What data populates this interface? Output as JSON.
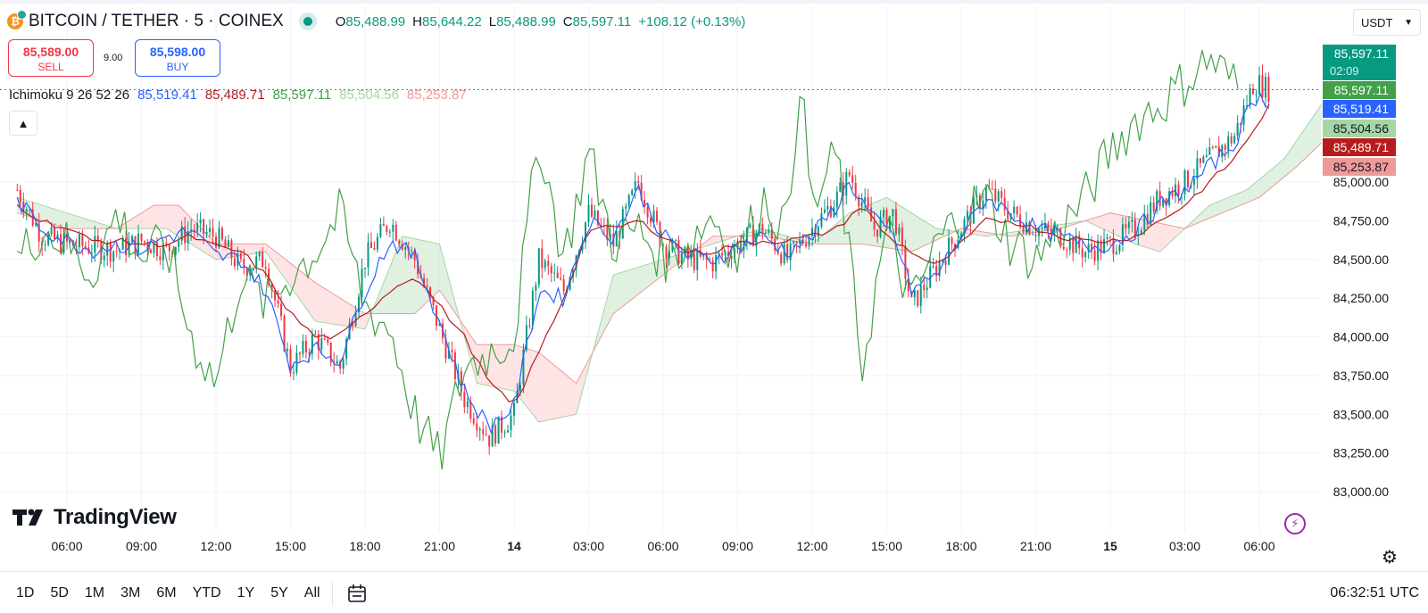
{
  "header": {
    "coin_glyph": "₿",
    "symbol": "BITCOIN / TETHER · 5 · COINEX",
    "ohlc": [
      {
        "label": "O",
        "value": "85,488.99"
      },
      {
        "label": "H",
        "value": "85,644.22"
      },
      {
        "label": "L",
        "value": "85,488.99"
      },
      {
        "label": "C",
        "value": "85,597.11"
      }
    ],
    "change": "+108.12 (+0.13%)",
    "currency": "USDT"
  },
  "trade": {
    "sell_price": "85,589.00",
    "sell_label": "SELL",
    "spread": "9.00",
    "buy_price": "85,598.00",
    "buy_label": "BUY"
  },
  "indicator": {
    "name": "Ichimoku 9 26 52 26",
    "values": [
      {
        "name": "conversion",
        "value": "85,519.41",
        "color": "#2962ff"
      },
      {
        "name": "base",
        "value": "85,489.71",
        "color": "#b71c1c"
      },
      {
        "name": "lagging",
        "value": "85,597.11",
        "color": "#43a047"
      },
      {
        "name": "lead-a",
        "value": "85,504.56",
        "color": "#a5d6a7"
      },
      {
        "name": "lead-b",
        "value": "85,253.87",
        "color": "#ef9a9a"
      }
    ]
  },
  "chart_data": {
    "type": "candlestick",
    "y_ticks": [
      83000,
      83250,
      83500,
      83750,
      84000,
      84250,
      84500,
      84750,
      85000
    ],
    "y_tick_labels": [
      "83,000.00",
      "83,250.00",
      "83,500.00",
      "83,750.00",
      "84,000.00",
      "84,250.00",
      "84,500.00",
      "84,750.00",
      "85,000.00"
    ],
    "ylim": [
      82950,
      85850
    ],
    "x_ticks": [
      "06:00",
      "09:00",
      "12:00",
      "15:00",
      "18:00",
      "21:00",
      "14",
      "03:00",
      "06:00",
      "09:00",
      "12:00",
      "15:00",
      "18:00",
      "21:00",
      "15",
      "03:00",
      "06:00"
    ],
    "x_tick_bold": [
      false,
      false,
      false,
      false,
      false,
      false,
      true,
      false,
      false,
      false,
      false,
      false,
      false,
      false,
      true,
      false,
      false
    ],
    "x_tick_hours": [
      6,
      9,
      12,
      15,
      18,
      21,
      24,
      27,
      30,
      33,
      36,
      39,
      42,
      45,
      48,
      51,
      54
    ],
    "xlim_hours": [
      3.9,
      56.5
    ],
    "last_hour": 54.4,
    "current_price_line": 85597.11,
    "series": {
      "close_path": [
        [
          4.0,
          84950
        ],
        [
          5.0,
          84650
        ],
        [
          6.0,
          84600
        ],
        [
          7.0,
          84580
        ],
        [
          8.0,
          84560
        ],
        [
          9.0,
          84620
        ],
        [
          10.0,
          84560
        ],
        [
          11.0,
          84700
        ],
        [
          12.0,
          84650
        ],
        [
          13.0,
          84450
        ],
        [
          14.0,
          84500
        ],
        [
          15.0,
          83800
        ],
        [
          16.0,
          84000
        ],
        [
          17.0,
          83800
        ],
        [
          18.0,
          84500
        ],
        [
          19.0,
          84750
        ],
        [
          20.0,
          84500
        ],
        [
          21.0,
          84050
        ],
        [
          22.0,
          83600
        ],
        [
          23.0,
          83350
        ],
        [
          24.0,
          83500
        ],
        [
          25.0,
          84500
        ],
        [
          26.0,
          84300
        ],
        [
          27.0,
          84800
        ],
        [
          28.0,
          84600
        ],
        [
          29.0,
          85000
        ],
        [
          30.0,
          84600
        ],
        [
          31.0,
          84500
        ],
        [
          32.0,
          84480
        ],
        [
          33.0,
          84600
        ],
        [
          34.0,
          84700
        ],
        [
          35.0,
          84500
        ],
        [
          36.0,
          84700
        ],
        [
          37.0,
          84900
        ],
        [
          37.5,
          85050
        ],
        [
          38.5,
          84700
        ],
        [
          39.3,
          84800
        ],
        [
          40.0,
          84200
        ],
        [
          41.0,
          84450
        ],
        [
          42.0,
          84700
        ],
        [
          43.0,
          84950
        ],
        [
          44.0,
          84800
        ],
        [
          45.0,
          84700
        ],
        [
          46.0,
          84650
        ],
        [
          47.0,
          84550
        ],
        [
          48.0,
          84600
        ],
        [
          49.0,
          84700
        ],
        [
          50.0,
          84900
        ],
        [
          51.0,
          85000
        ],
        [
          52.0,
          85150
        ],
        [
          53.0,
          85300
        ],
        [
          53.8,
          85650
        ],
        [
          54.4,
          85597
        ]
      ],
      "conversion_path": [
        [
          4.0,
          84880
        ],
        [
          5.0,
          84700
        ],
        [
          6.0,
          84620
        ],
        [
          7.0,
          84560
        ],
        [
          8.0,
          84600
        ],
        [
          9.0,
          84560
        ],
        [
          10.0,
          84650
        ],
        [
          11.0,
          84680
        ],
        [
          12.0,
          84520
        ],
        [
          13.0,
          84500
        ],
        [
          14.0,
          84300
        ],
        [
          15.0,
          83820
        ],
        [
          16.0,
          83920
        ],
        [
          17.0,
          83850
        ],
        [
          18.0,
          84300
        ],
        [
          19.0,
          84620
        ],
        [
          20.0,
          84520
        ],
        [
          21.0,
          84100
        ],
        [
          22.0,
          83650
        ],
        [
          23.0,
          83420
        ],
        [
          24.0,
          83550
        ],
        [
          25.0,
          84300
        ],
        [
          26.0,
          84250
        ],
        [
          27.0,
          84750
        ],
        [
          28.0,
          84650
        ],
        [
          29.0,
          84950
        ],
        [
          30.0,
          84650
        ],
        [
          31.0,
          84520
        ],
        [
          32.0,
          84500
        ],
        [
          33.0,
          84580
        ],
        [
          34.0,
          84650
        ],
        [
          35.0,
          84550
        ],
        [
          36.0,
          84650
        ],
        [
          37.0,
          84850
        ],
        [
          37.5,
          85000
        ],
        [
          38.5,
          84750
        ],
        [
          39.3,
          84650
        ],
        [
          40.0,
          84300
        ],
        [
          41.0,
          84400
        ],
        [
          42.0,
          84650
        ],
        [
          43.0,
          84900
        ],
        [
          44.0,
          84800
        ],
        [
          45.0,
          84700
        ],
        [
          46.0,
          84650
        ],
        [
          47.0,
          84580
        ],
        [
          48.0,
          84600
        ],
        [
          49.0,
          84680
        ],
        [
          50.0,
          84850
        ],
        [
          51.0,
          84950
        ],
        [
          52.0,
          85100
        ],
        [
          53.0,
          85250
        ],
        [
          53.8,
          85550
        ],
        [
          54.4,
          85519
        ]
      ],
      "base_path": [
        [
          4.0,
          84850
        ],
        [
          5.0,
          84750
        ],
        [
          6.0,
          84700
        ],
        [
          7.0,
          84620
        ],
        [
          8.0,
          84620
        ],
        [
          9.0,
          84600
        ],
        [
          10.0,
          84600
        ],
        [
          11.0,
          84650
        ],
        [
          12.0,
          84580
        ],
        [
          13.0,
          84550
        ],
        [
          14.0,
          84400
        ],
        [
          15.0,
          84150
        ],
        [
          16.0,
          84000
        ],
        [
          17.0,
          84000
        ],
        [
          18.0,
          84150
        ],
        [
          19.0,
          84300
        ],
        [
          20.0,
          84400
        ],
        [
          21.0,
          84200
        ],
        [
          22.0,
          84000
        ],
        [
          23.0,
          83700
        ],
        [
          24.0,
          83550
        ],
        [
          25.0,
          83900
        ],
        [
          26.0,
          84250
        ],
        [
          27.0,
          84700
        ],
        [
          28.0,
          84700
        ],
        [
          29.0,
          84750
        ],
        [
          30.0,
          84650
        ],
        [
          31.0,
          84550
        ],
        [
          32.0,
          84550
        ],
        [
          33.0,
          84600
        ],
        [
          34.0,
          84620
        ],
        [
          35.0,
          84620
        ],
        [
          36.0,
          84650
        ],
        [
          37.0,
          84700
        ],
        [
          38.0,
          84850
        ],
        [
          39.0,
          84650
        ],
        [
          40.0,
          84550
        ],
        [
          41.0,
          84450
        ],
        [
          42.0,
          84600
        ],
        [
          43.0,
          84750
        ],
        [
          44.0,
          84750
        ],
        [
          45.0,
          84700
        ],
        [
          46.0,
          84650
        ],
        [
          47.0,
          84620
        ],
        [
          48.0,
          84620
        ],
        [
          49.0,
          84650
        ],
        [
          50.0,
          84750
        ],
        [
          51.0,
          84850
        ],
        [
          52.0,
          85000
        ],
        [
          53.0,
          85150
        ],
        [
          54.4,
          85489
        ]
      ],
      "lagging_path": [
        [
          4.0,
          84500
        ],
        [
          5.0,
          84700
        ],
        [
          6.0,
          84600
        ],
        [
          7.0,
          84400
        ],
        [
          8.0,
          84800
        ],
        [
          9.0,
          84500
        ],
        [
          10.0,
          84600
        ],
        [
          11.0,
          84000
        ],
        [
          12.0,
          83700
        ],
        [
          13.0,
          84400
        ],
        [
          14.0,
          84200
        ],
        [
          15.0,
          84400
        ],
        [
          16.0,
          84550
        ],
        [
          17.0,
          84800
        ],
        [
          18.0,
          84200
        ],
        [
          19.0,
          84050
        ],
        [
          20.0,
          83500
        ],
        [
          21.0,
          83200
        ],
        [
          22.0,
          83800
        ],
        [
          23.0,
          83900
        ],
        [
          24.0,
          84000
        ],
        [
          25.0,
          85300
        ],
        [
          26.0,
          84500
        ],
        [
          27.0,
          85200
        ],
        [
          28.0,
          84600
        ],
        [
          29.0,
          84700
        ],
        [
          30.0,
          84500
        ],
        [
          31.0,
          84600
        ],
        [
          32.0,
          84800
        ],
        [
          33.0,
          84500
        ],
        [
          34.0,
          84900
        ],
        [
          35.0,
          84700
        ],
        [
          35.5,
          85700
        ],
        [
          36.0,
          84800
        ],
        [
          37.0,
          85200
        ],
        [
          38.0,
          83800
        ],
        [
          39.0,
          84700
        ],
        [
          40.0,
          84200
        ],
        [
          41.0,
          84600
        ],
        [
          42.0,
          84800
        ],
        [
          43.0,
          84900
        ],
        [
          44.0,
          84600
        ],
        [
          45.0,
          84500
        ],
        [
          46.0,
          84700
        ],
        [
          47.0,
          84900
        ],
        [
          48.0,
          85200
        ],
        [
          49.0,
          85400
        ],
        [
          50.0,
          85500
        ],
        [
          51.0,
          85650
        ],
        [
          52.0,
          85800
        ],
        [
          53.2,
          85597
        ]
      ],
      "cloud_a_path": [
        [
          4.0,
          84900
        ],
        [
          6.0,
          84800
        ],
        [
          8.0,
          84700
        ],
        [
          10.0,
          84700
        ],
        [
          12.0,
          84500
        ],
        [
          14.0,
          84550
        ],
        [
          16.0,
          84100
        ],
        [
          18.0,
          84050
        ],
        [
          19.5,
          84650
        ],
        [
          21.0,
          84600
        ],
        [
          22.5,
          83700
        ],
        [
          24.0,
          83650
        ],
        [
          25.0,
          83450
        ],
        [
          26.5,
          83500
        ],
        [
          28.0,
          84400
        ],
        [
          30.0,
          84500
        ],
        [
          32.0,
          84600
        ],
        [
          34.0,
          84700
        ],
        [
          36.0,
          84600
        ],
        [
          37.5,
          84800
        ],
        [
          39.0,
          84900
        ],
        [
          41.0,
          84700
        ],
        [
          43.0,
          84650
        ],
        [
          45.0,
          84700
        ],
        [
          47.0,
          84750
        ],
        [
          49.0,
          84600
        ],
        [
          50.0,
          84550
        ],
        [
          51.0,
          84700
        ],
        [
          52.0,
          84850
        ],
        [
          53.5,
          84950
        ],
        [
          55.0,
          85150
        ],
        [
          56.5,
          85500
        ]
      ],
      "cloud_b_path": [
        [
          4.0,
          84800
        ],
        [
          6.0,
          84700
        ],
        [
          8.0,
          84700
        ],
        [
          9.5,
          84850
        ],
        [
          10.5,
          84850
        ],
        [
          12.0,
          84600
        ],
        [
          14.0,
          84600
        ],
        [
          16.0,
          84350
        ],
        [
          18.0,
          84150
        ],
        [
          20.0,
          84150
        ],
        [
          21.0,
          84300
        ],
        [
          22.5,
          83950
        ],
        [
          24.0,
          83950
        ],
        [
          25.0,
          83900
        ],
        [
          26.5,
          83700
        ],
        [
          28.0,
          84150
        ],
        [
          30.0,
          84400
        ],
        [
          32.0,
          84650
        ],
        [
          34.0,
          84650
        ],
        [
          36.0,
          84600
        ],
        [
          38.0,
          84600
        ],
        [
          40.0,
          84550
        ],
        [
          42.0,
          84700
        ],
        [
          44.0,
          84650
        ],
        [
          46.0,
          84700
        ],
        [
          48.0,
          84800
        ],
        [
          49.5,
          84750
        ],
        [
          51.0,
          84700
        ],
        [
          52.5,
          84800
        ],
        [
          54.0,
          84900
        ],
        [
          55.5,
          85100
        ],
        [
          56.5,
          85253
        ]
      ]
    },
    "price_labels": [
      {
        "value": 85597.11,
        "text": "85,597.11",
        "sub": "02:09",
        "bg": "#089981",
        "slot": 0
      },
      {
        "value": 85597.11,
        "text": "85,597.11",
        "bg": "#43a047",
        "slot": 1
      },
      {
        "value": 85519.41,
        "text": "85,519.41",
        "bg": "#2962ff",
        "slot": 2
      },
      {
        "value": 85504.56,
        "text": "85,504.56",
        "bg": "#a5d6a7",
        "fg": "#131722",
        "slot": 3
      },
      {
        "value": 85489.71,
        "text": "85,489.71",
        "bg": "#b71c1c",
        "slot": 4
      },
      {
        "value": 85253.87,
        "text": "85,253.87",
        "bg": "#ef9a9a",
        "fg": "#131722",
        "slot": 5
      }
    ],
    "colors": {
      "up": "#089981",
      "down": "#f23645",
      "conversion": "#2962ff",
      "base": "#b71c1c",
      "lagging": "#43a047",
      "cloud_bull": "#c8e6c9",
      "cloud_bear": "#ffcdd2",
      "grid": "#f0f3fa"
    }
  },
  "branding": {
    "logo_text": "TradingView",
    "logo_mark": "17"
  },
  "bottom_bar": {
    "ranges": [
      "1D",
      "5D",
      "1M",
      "3M",
      "6M",
      "YTD",
      "1Y",
      "5Y",
      "All"
    ],
    "clock": "06:32:51 UTC",
    "calendar_icon": "calendar-icon"
  }
}
